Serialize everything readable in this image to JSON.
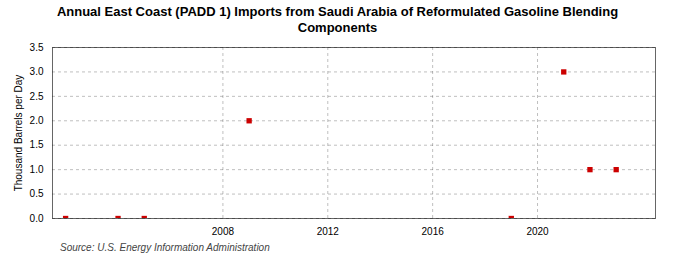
{
  "chart_data": {
    "type": "scatter",
    "title": "Annual East Coast (PADD 1) Imports from Saudi Arabia of Reformulated Gasoline Blending\nComponents",
    "ylabel": "Thousand Barrels per Day",
    "annotations": [
      "Source: U.S. Energy Information Administration"
    ],
    "x": [
      2002,
      2004,
      2005,
      2009,
      2019,
      2021,
      2022,
      2023
    ],
    "values": [
      0.0,
      0.0,
      0.0,
      2.0,
      0.0,
      3.0,
      1.0,
      1.0
    ],
    "color": "#cc0000",
    "marker": "square",
    "xlim": [
      2001.5,
      2024.5
    ],
    "ylim": [
      0.0,
      3.5
    ],
    "xticks": [
      2008,
      2012,
      2016,
      2020
    ],
    "yticks": [
      {
        "value": 0.0,
        "label": "0.0"
      },
      0.5,
      {
        "value": 1.0,
        "label": "1.0"
      },
      1.5,
      {
        "value": 2.0,
        "label": "2.0"
      },
      2.5,
      {
        "value": 3.0,
        "label": "3.0"
      },
      3.5
    ],
    "grid": true
  }
}
